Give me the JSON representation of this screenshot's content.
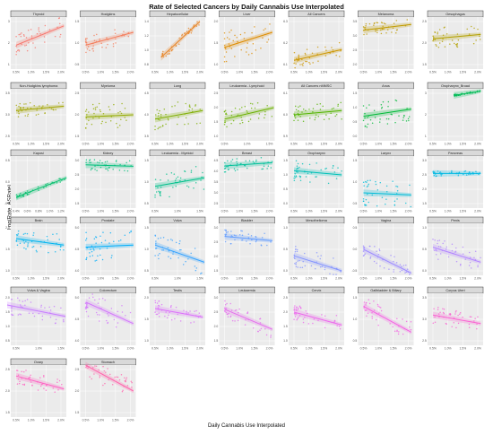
{
  "title": "Rate of Selected Cancers by Daily Cannabis Use Interpolated",
  "xlabel": "Daily Cannabis Use Interpolated",
  "ylabel": "Log(Rate_ASRate)",
  "colors": {
    "panel_bg": "#ebebeb",
    "strip_bg": "#d9d9d9",
    "grid": "#ffffff",
    "strip_border": "#333333"
  },
  "chart_data": {
    "type": "scatter",
    "layout": "facet_wrap 7 columns",
    "panels": [
      {
        "name": "Thyroid",
        "color": "#f8766d",
        "xt": [
          "0.5%",
          "1.0%",
          "1.5%",
          "2.0%"
        ],
        "yt": [
          "3",
          "2",
          "1"
        ],
        "x": [
          0.005,
          0.021
        ],
        "y": [
          1.9,
          2.8
        ],
        "spread": 0.5
      },
      {
        "name": "Hodgkins",
        "color": "#f47a58",
        "xt": [
          "0.5%",
          "1.0%",
          "1.5%",
          "2.0%"
        ],
        "yt": [
          "1.5",
          "1.0",
          "0.5"
        ],
        "x": [
          0.005,
          0.021
        ],
        "y": [
          0.95,
          1.25
        ],
        "spread": 0.2
      },
      {
        "name": "Hepatocellular",
        "color": "#e88526",
        "xt": [
          "0.5%",
          "1.0%",
          "1.5%",
          "2.0%"
        ],
        "yt": [
          "1.4",
          "1.2",
          "1.0",
          "0.8"
        ],
        "x": [
          0.007,
          0.02
        ],
        "y": [
          0.9,
          1.4
        ],
        "spread": 0.06
      },
      {
        "name": "Liver",
        "color": "#de8c00",
        "xt": [
          "0.5%",
          "1.0%",
          "1.5%",
          "2.0%"
        ],
        "yt": [
          "2.0",
          "1.5",
          "1.0"
        ],
        "x": [
          0.005,
          0.021
        ],
        "y": [
          1.4,
          1.75
        ],
        "spread": 0.35
      },
      {
        "name": "All Cancers",
        "color": "#cd9600",
        "xt": [
          "0.5%",
          "1.0%",
          "1.5%",
          "2.0%"
        ],
        "yt": [
          "6.3",
          "6.2",
          "6.1"
        ],
        "x": [
          0.005,
          0.021
        ],
        "y": [
          6.12,
          6.17
        ],
        "spread": 0.04
      },
      {
        "name": "Melanoma",
        "color": "#c09b00",
        "xt": [
          "0.5%",
          "1.0%",
          "1.5%",
          "2.0%"
        ],
        "yt": [
          "3.5",
          "3.0",
          "2.5",
          "2.0"
        ],
        "x": [
          0.005,
          0.021
        ],
        "y": [
          3.2,
          3.4
        ],
        "spread": 0.25
      },
      {
        "name": "Oesophagus",
        "color": "#b3a000",
        "xt": [
          "0.5%",
          "1.0%",
          "1.5%",
          "2.0%"
        ],
        "yt": [
          "2.5",
          "2.0",
          "1.5"
        ],
        "x": [
          0.005,
          0.021
        ],
        "y": [
          2.1,
          2.2
        ],
        "spread": 0.25
      },
      {
        "name": "Non-Hodgkins lymphoma",
        "color": "#a3a500",
        "xt": [
          "0.5%",
          "1.0%",
          "1.5%",
          "2.0%"
        ],
        "yt": [
          "3.5",
          "3.0",
          "2.5"
        ],
        "x": [
          0.005,
          0.021
        ],
        "y": [
          3.1,
          3.2
        ],
        "spread": 0.15
      },
      {
        "name": "Myeloma",
        "color": "#93aa00",
        "xt": [
          "0.5%",
          "1.0%",
          "1.5%",
          "2.0%"
        ],
        "yt": [
          "2.5",
          "2.0",
          "1.5"
        ],
        "x": [
          0.005,
          0.021
        ],
        "y": [
          1.95,
          2.0
        ],
        "spread": 0.3
      },
      {
        "name": "Lung",
        "color": "#7fae00",
        "xt": [
          "0.5%",
          "1.0%",
          "1.5%",
          "2.0%"
        ],
        "yt": [
          "4.5",
          "4.0",
          "3.5"
        ],
        "x": [
          0.005,
          0.021
        ],
        "y": [
          3.9,
          4.1
        ],
        "spread": 0.3
      },
      {
        "name": "Leukaemia - Lymphoid",
        "color": "#6bb100",
        "xt": [
          "0.5%",
          "1.0%",
          "1.5%"
        ],
        "yt": [
          "2.5",
          "2.0",
          "1.5",
          "1.0"
        ],
        "x": [
          0.005,
          0.016
        ],
        "y": [
          1.6,
          2.0
        ],
        "spread": 0.35
      },
      {
        "name": "All Cancers nMMSC",
        "color": "#53b400",
        "xt": [
          "0.5%",
          "1.0%",
          "1.5%",
          "2.0%"
        ],
        "yt": [
          "6.1",
          "6.0",
          "5.9"
        ],
        "x": [
          0.005,
          0.021
        ],
        "y": [
          6.0,
          6.02
        ],
        "spread": 0.04
      },
      {
        "name": "Anus",
        "color": "#00ba38",
        "xt": [
          "0.5%",
          "1.0%",
          "1.5%",
          "2.0%"
        ],
        "yt": [
          "1.5",
          "1.0",
          "0.5",
          "0.0"
        ],
        "x": [
          0.005,
          0.021
        ],
        "y": [
          0.7,
          0.95
        ],
        "spread": 0.4
      },
      {
        "name": "Oropharynx_Broad",
        "color": "#00bc56",
        "xt": [
          "0.5%",
          "1.0%",
          "1.5%",
          "2.0%"
        ],
        "yt": [
          "3",
          "2",
          "1"
        ],
        "x": [
          0.012,
          0.021
        ],
        "y": [
          2.9,
          3.1
        ],
        "spread": 0.05
      },
      {
        "name": "Kaposi",
        "color": "#00be6a",
        "xt": [
          "0.4%",
          "0.6%",
          "0.8%",
          "1.0%",
          "1.2%"
        ],
        "yt": [
          "0.5",
          "0.0",
          "-0.5"
        ],
        "x": [
          0.004,
          0.013
        ],
        "y": [
          -0.35,
          0.1
        ],
        "spread": 0.05
      },
      {
        "name": "Kidney",
        "color": "#00c07b",
        "xt": [
          "0.5%",
          "1.0%",
          "1.5%",
          "2.0%"
        ],
        "yt": [
          "3.0",
          "2.5",
          "2.0",
          "1.5"
        ],
        "x": [
          0.005,
          0.021
        ],
        "y": [
          2.85,
          2.8
        ],
        "spread": 0.2
      },
      {
        "name": "Leukaemia - Myeloid",
        "color": "#00c08b",
        "xt": [
          "0.5%",
          "1.0%",
          "1.5%"
        ],
        "yt": [
          "1.5",
          "1.0",
          "0.5"
        ],
        "x": [
          0.005,
          0.016
        ],
        "y": [
          0.9,
          1.1
        ],
        "spread": 0.3
      },
      {
        "name": "Breast",
        "color": "#00c19a",
        "xt": [
          "0.5%",
          "1.0%",
          "1.5%",
          "2.0%"
        ],
        "yt": [
          "4.5",
          "4.0",
          "3.5",
          "3.0",
          "2.5"
        ],
        "x": [
          0.005,
          0.021
        ],
        "y": [
          4.25,
          4.4
        ],
        "spread": 0.3
      },
      {
        "name": "Oropharynx",
        "color": "#00c0b8",
        "xt": [
          "0.5%",
          "1.0%",
          "1.5%",
          "2.0%"
        ],
        "yt": [
          "1.5",
          "1.0",
          "0.5",
          "0.0"
        ],
        "x": [
          0.005,
          0.021
        ],
        "y": [
          1.15,
          1.0
        ],
        "spread": 0.35
      },
      {
        "name": "Larynx",
        "color": "#00bcd8",
        "xt": [
          "0.5%",
          "1.0%",
          "1.5%",
          "2.0%"
        ],
        "yt": [
          "1.5",
          "1.0",
          "0.5"
        ],
        "x": [
          0.005,
          0.021
        ],
        "y": [
          0.75,
          0.7
        ],
        "spread": 0.3
      },
      {
        "name": "Pancreas",
        "color": "#00b9e3",
        "xt": [
          "0.5%",
          "1.0%",
          "1.5%",
          "2.0%"
        ],
        "yt": [
          "3.0",
          "2.5",
          "2.0",
          "1.5"
        ],
        "x": [
          0.005,
          0.021
        ],
        "y": [
          2.55,
          2.55
        ],
        "spread": 0.1
      },
      {
        "name": "Brain",
        "color": "#00b4ef",
        "xt": [
          "0.5%",
          "1.0%",
          "1.5%",
          "2.0%"
        ],
        "yt": [
          "2.0",
          "1.5",
          "1.0"
        ],
        "x": [
          0.005,
          0.021
        ],
        "y": [
          1.75,
          1.6
        ],
        "spread": 0.25
      },
      {
        "name": "Prostate",
        "color": "#00aefa",
        "xt": [
          "0.5%",
          "1.0%",
          "1.5%",
          "2.0%"
        ],
        "yt": [
          "5.0",
          "4.5",
          "4.0"
        ],
        "x": [
          0.005,
          0.021
        ],
        "y": [
          4.55,
          4.6
        ],
        "spread": 0.35
      },
      {
        "name": "Vulva",
        "color": "#35a2ff",
        "xt": [
          "0.5%",
          "1.0%",
          "1.5%"
        ],
        "yt": [
          "1.5",
          "1.0",
          "0.5"
        ],
        "x": [
          0.005,
          0.016
        ],
        "y": [
          1.1,
          0.7
        ],
        "spread": 0.3
      },
      {
        "name": "Bladder",
        "color": "#619cff",
        "xt": [
          "0.5%",
          "1.0%",
          "1.5%",
          "2.0%"
        ],
        "yt": [
          "3.0",
          "2.5",
          "2.0",
          "1.5"
        ],
        "x": [
          0.005,
          0.021
        ],
        "y": [
          2.7,
          2.55
        ],
        "spread": 0.25
      },
      {
        "name": "Mesothelioma",
        "color": "#8494ff",
        "xt": [
          "0.5%",
          "1.0%",
          "1.5%",
          "2.0%"
        ],
        "yt": [
          "1.0",
          "0.5",
          "0.0"
        ],
        "x": [
          0.005,
          0.021
        ],
        "y": [
          0.35,
          0.0
        ],
        "spread": 0.25
      },
      {
        "name": "Vagina",
        "color": "#9d8bff",
        "xt": [
          "0.5%",
          "1.0%",
          "1.5%",
          "2.0%"
        ],
        "yt": [
          "0.5",
          "0.0",
          "-0.5"
        ],
        "x": [
          0.005,
          0.021
        ],
        "y": [
          0.0,
          -0.55
        ],
        "spread": 0.2
      },
      {
        "name": "Penis",
        "color": "#b285ff",
        "xt": [
          "0.5%",
          "1.0%",
          "1.5%",
          "2.0%"
        ],
        "yt": [
          "1.0",
          "0.5",
          "0.0"
        ],
        "x": [
          0.005,
          0.021
        ],
        "y": [
          0.55,
          0.2
        ],
        "spread": 0.25
      },
      {
        "name": "Vulva & Vagina",
        "color": "#c77cff",
        "xt": [
          "0.5%",
          "1.0%",
          "1.5%"
        ],
        "yt": [
          "2.0",
          "1.5",
          "1.0",
          "0.5"
        ],
        "x": [
          0.003,
          0.016
        ],
        "y": [
          1.75,
          1.35
        ],
        "spread": 0.35
      },
      {
        "name": "Colorectum",
        "color": "#d376fc",
        "xt": [
          "0.5%",
          "1.0%",
          "1.5%",
          "2.0%"
        ],
        "yt": [
          "5.0",
          "4.5",
          "4.0"
        ],
        "x": [
          0.005,
          0.021
        ],
        "y": [
          4.9,
          4.4
        ],
        "spread": 0.3
      },
      {
        "name": "Testis",
        "color": "#dc71fa",
        "xt": [
          "0.5%",
          "1.0%",
          "1.5%",
          "2.0%"
        ],
        "yt": [
          "2.0",
          "1.5",
          "1.0"
        ],
        "x": [
          0.005,
          0.021
        ],
        "y": [
          1.75,
          1.55
        ],
        "spread": 0.2
      },
      {
        "name": "Leukaemia",
        "color": "#e56ded",
        "xt": [
          "0.5%",
          "1.0%",
          "1.5%",
          "2.0%"
        ],
        "yt": [
          "3.0",
          "2.5",
          "2.0",
          "1.5"
        ],
        "x": [
          0.005,
          0.021
        ],
        "y": [
          2.6,
          1.9
        ],
        "spread": 0.3
      },
      {
        "name": "Cervix",
        "color": "#ed68ed",
        "xt": [
          "0.5%",
          "1.0%",
          "1.5%",
          "2.0%"
        ],
        "yt": [
          "2.5",
          "2.0",
          "1.5",
          "1.0"
        ],
        "x": [
          0.005,
          0.021
        ],
        "y": [
          2.0,
          1.55
        ],
        "spread": 0.3
      },
      {
        "name": "Gallbladder & Biliary",
        "color": "#f564e3",
        "xt": [
          "0.5%",
          "1.0%",
          "1.5%",
          "2.0%"
        ],
        "yt": [
          "1.5",
          "1.0",
          "0.5"
        ],
        "x": [
          0.005,
          0.021
        ],
        "y": [
          1.3,
          0.7
        ],
        "spread": 0.25
      },
      {
        "name": "Corpus Uteri",
        "color": "#fa62d2",
        "xt": [
          "0.5%",
          "1.0%",
          "1.5%",
          "2.0%"
        ],
        "yt": [
          "3.5",
          "3.0",
          "2.5"
        ],
        "x": [
          0.005,
          0.021
        ],
        "y": [
          3.1,
          2.9
        ],
        "spread": 0.2
      },
      {
        "name": "Ovary",
        "color": "#ff61c3",
        "xt": [
          "0.5%",
          "1.0%",
          "1.5%",
          "2.0%"
        ],
        "yt": [
          "2.5",
          "2.0",
          "1.5"
        ],
        "x": [
          0.005,
          0.021
        ],
        "y": [
          2.35,
          2.05
        ],
        "spread": 0.2
      },
      {
        "name": "Stomach",
        "color": "#ff65ac",
        "xt": [
          "0.5%",
          "1.0%",
          "1.5%",
          "2.0%"
        ],
        "yt": [
          "2.5",
          "2.0",
          "1.5"
        ],
        "x": [
          0.005,
          0.021
        ],
        "y": [
          2.6,
          2.0
        ],
        "spread": 0.25
      }
    ]
  }
}
